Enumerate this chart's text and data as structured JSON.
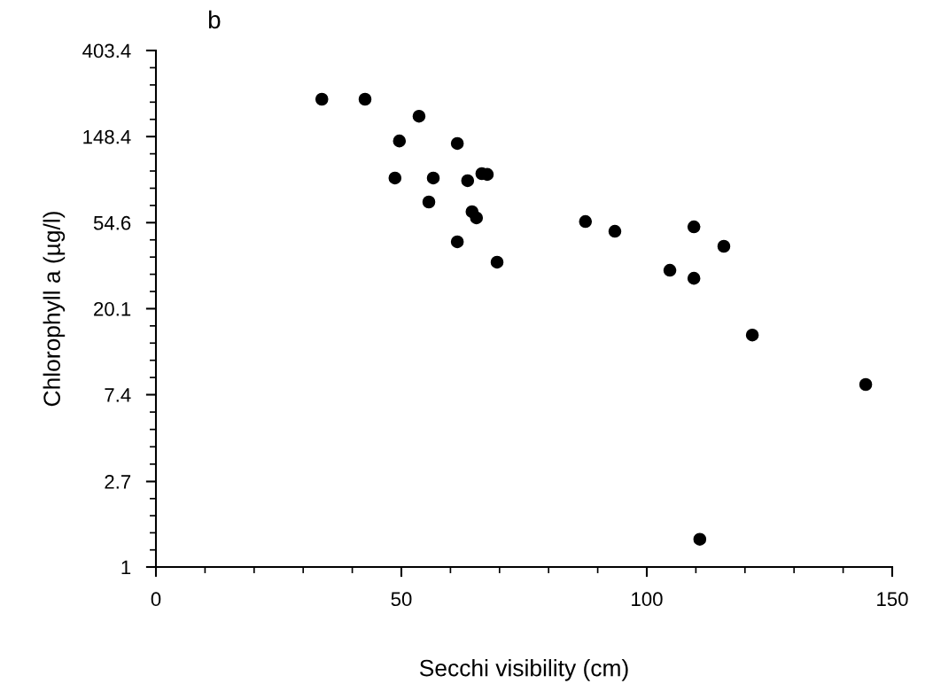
{
  "chart_data": {
    "type": "scatter",
    "title": "b",
    "xlabel": "Secchi visibility (cm)",
    "ylabel": "Chlorophyll a (µg/l)",
    "log": "y",
    "marker": "circle",
    "grid": false,
    "legend": false,
    "xlim": [
      0,
      150
    ],
    "xticks": [
      0,
      50,
      100,
      150
    ],
    "ylim": [
      1,
      403.4
    ],
    "yticks": [
      1,
      2.7,
      7.4,
      20.1,
      54.6,
      148.4,
      403.4
    ],
    "series": [
      {
        "color": "#000000",
        "x": [
          33.8,
          42.6,
          53.6,
          49.6,
          61.4,
          48.7,
          56.5,
          63.5,
          66.4,
          67.5,
          55.6,
          64.4,
          65.3,
          61.4,
          69.5,
          87.5,
          93.5,
          109.6,
          115.7,
          104.7,
          109.6,
          121.5,
          144.6,
          110.8
        ],
        "values": [
          229,
          229,
          188,
          141,
          137,
          91.7,
          91.7,
          88.9,
          96.5,
          95.6,
          69.4,
          62,
          57.7,
          43.7,
          34.5,
          55.3,
          49.4,
          52,
          41.5,
          31.4,
          28.6,
          14.8,
          8.33,
          1.38
        ]
      }
    ]
  }
}
